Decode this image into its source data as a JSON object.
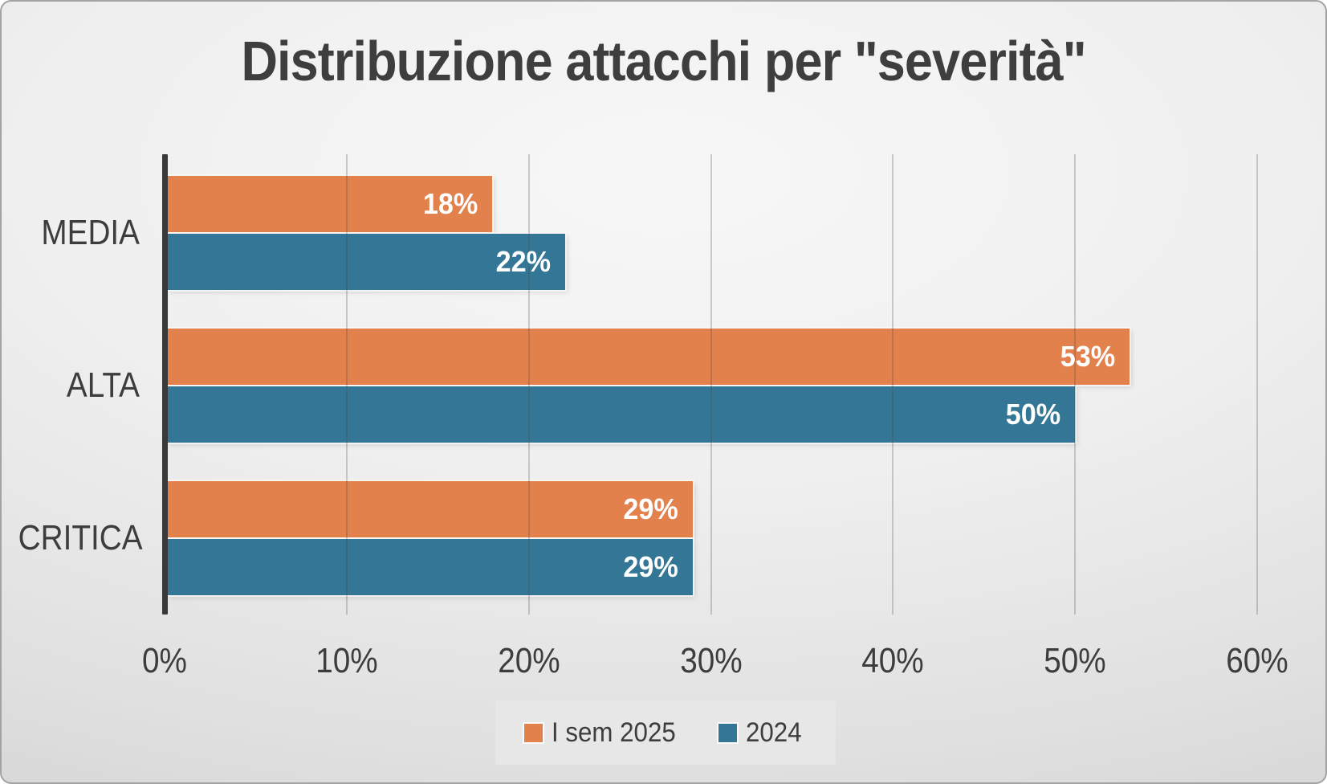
{
  "chart_data": {
    "type": "bar",
    "orientation": "horizontal",
    "title": "Distribuzione attacchi per \"severità\"",
    "categories": [
      "MEDIA",
      "ALTA",
      "CRITICA"
    ],
    "series": [
      {
        "name": "I sem 2025",
        "color": "#E2814C",
        "values": [
          18,
          53,
          29
        ]
      },
      {
        "name": "2024",
        "color": "#337695",
        "values": [
          22,
          50,
          29
        ]
      }
    ],
    "value_label_suffix": "%",
    "x_ticks": [
      "0%",
      "10%",
      "20%",
      "30%",
      "40%",
      "50%",
      "60%"
    ],
    "xlim": [
      0,
      60
    ],
    "grid": true,
    "legend_position": "bottom",
    "value_label_color": "#ffffff",
    "text_color": "#3d3d3d"
  }
}
